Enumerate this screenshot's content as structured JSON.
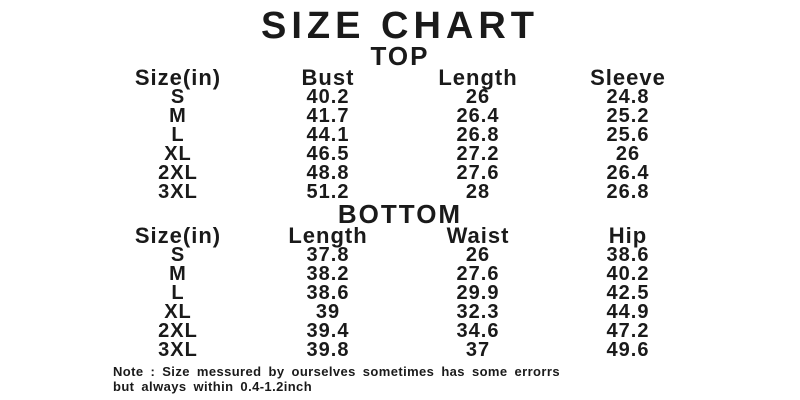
{
  "title": "SIZE CHART",
  "note": {
    "line1": "Note :  Size messured by ourselves sometimes has some errorrs",
    "line2": "but always within 0.4-1.2inch"
  },
  "colors": {
    "text": "#1a1a1a",
    "background": "#ffffff"
  },
  "chart_data": [
    {
      "type": "table",
      "title": "TOP",
      "unit": "inches",
      "columns": [
        "Size(in)",
        "Bust",
        "Length",
        "Sleeve"
      ],
      "rows": [
        [
          "S",
          "40.2",
          "26",
          "24.8"
        ],
        [
          "M",
          "41.7",
          "26.4",
          "25.2"
        ],
        [
          "L",
          "44.1",
          "26.8",
          "25.6"
        ],
        [
          "XL",
          "46.5",
          "27.2",
          "26"
        ],
        [
          "2XL",
          "48.8",
          "27.6",
          "26.4"
        ],
        [
          "3XL",
          "51.2",
          "28",
          "26.8"
        ]
      ]
    },
    {
      "type": "table",
      "title": "BOTTOM",
      "unit": "inches",
      "columns": [
        "Size(in)",
        "Length",
        "Waist",
        "Hip"
      ],
      "rows": [
        [
          "S",
          "37.8",
          "26",
          "38.6"
        ],
        [
          "M",
          "38.2",
          "27.6",
          "40.2"
        ],
        [
          "L",
          "38.6",
          "29.9",
          "42.5"
        ],
        [
          "XL",
          "39",
          "32.3",
          "44.9"
        ],
        [
          "2XL",
          "39.4",
          "34.6",
          "47.2"
        ],
        [
          "3XL",
          "39.8",
          "37",
          "49.6"
        ]
      ]
    }
  ]
}
